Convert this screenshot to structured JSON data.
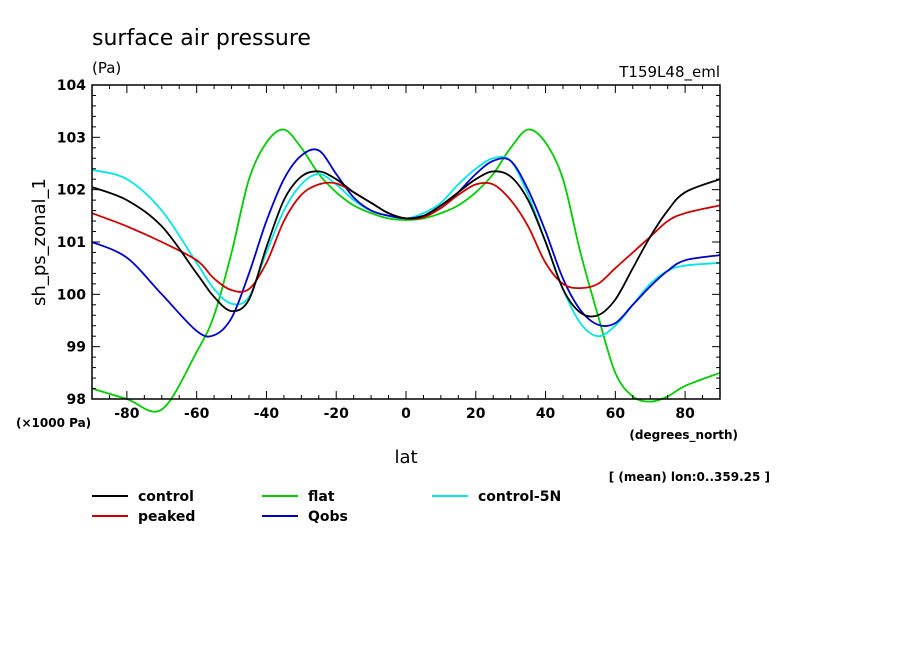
{
  "chart_data": {
    "type": "line",
    "title": "surface air pressure",
    "units": "(Pa)",
    "experiment": "T159L48_eml",
    "xlabel": "lat",
    "ylabel": "sh_ps_zonal_1",
    "x_units": "(degrees_north)",
    "y_scale_note": "(×1000 Pa)",
    "averaging_note": "[ (mean) lon:0..359.25 ]",
    "xlim": [
      -90,
      90
    ],
    "ylim": [
      98,
      104
    ],
    "xticks": [
      -80,
      -60,
      -40,
      -20,
      0,
      20,
      40,
      60,
      80
    ],
    "yticks": [
      98,
      99,
      100,
      101,
      102,
      103,
      104
    ],
    "x": [
      -90,
      -80,
      -70,
      -60,
      -55,
      -50,
      -45,
      -40,
      -35,
      -30,
      -25,
      -20,
      -15,
      -10,
      -5,
      0,
      5,
      10,
      15,
      20,
      25,
      30,
      35,
      40,
      45,
      50,
      55,
      60,
      65,
      70,
      75,
      80,
      90
    ],
    "series": [
      {
        "name": "control",
        "color": "#000000",
        "values": [
          102.05,
          101.8,
          101.3,
          100.4,
          99.95,
          99.68,
          99.9,
          100.9,
          101.8,
          102.25,
          102.35,
          102.2,
          101.95,
          101.75,
          101.55,
          101.45,
          101.5,
          101.7,
          101.95,
          102.2,
          102.35,
          102.25,
          101.8,
          101.0,
          100.1,
          99.65,
          99.6,
          99.9,
          100.5,
          101.1,
          101.6,
          101.95,
          102.2
        ]
      },
      {
        "name": "peaked",
        "color": "#cc0000",
        "values": [
          101.55,
          101.3,
          101.0,
          100.65,
          100.3,
          100.08,
          100.1,
          100.6,
          101.4,
          101.9,
          102.1,
          102.12,
          101.95,
          101.75,
          101.55,
          101.45,
          101.47,
          101.65,
          101.9,
          102.1,
          102.1,
          101.8,
          101.3,
          100.6,
          100.2,
          100.12,
          100.2,
          100.5,
          100.8,
          101.1,
          101.4,
          101.55,
          101.7
        ]
      },
      {
        "name": "flat",
        "color": "#00cc00",
        "values": [
          98.2,
          98.0,
          97.8,
          98.9,
          99.6,
          100.8,
          102.2,
          102.9,
          103.15,
          102.8,
          102.3,
          101.95,
          101.7,
          101.55,
          101.45,
          101.42,
          101.45,
          101.55,
          101.7,
          101.95,
          102.3,
          102.8,
          103.15,
          102.9,
          102.2,
          100.8,
          99.6,
          98.5,
          98.05,
          97.95,
          98.05,
          98.25,
          98.5
        ]
      },
      {
        "name": "control-5N",
        "color": "#00e5e5",
        "values": [
          102.38,
          102.2,
          101.6,
          100.6,
          100.1,
          99.82,
          99.95,
          100.8,
          101.6,
          102.1,
          102.3,
          102.1,
          101.8,
          101.6,
          101.5,
          101.45,
          101.55,
          101.75,
          102.1,
          102.4,
          102.6,
          102.55,
          101.9,
          101.0,
          100.1,
          99.45,
          99.2,
          99.4,
          99.8,
          100.2,
          100.45,
          100.55,
          100.6
        ]
      },
      {
        "name": "Qobs",
        "color": "#0000cc",
        "values": [
          101.0,
          100.7,
          100.0,
          99.3,
          99.22,
          99.55,
          100.4,
          101.4,
          102.2,
          102.65,
          102.75,
          102.3,
          101.85,
          101.6,
          101.5,
          101.45,
          101.5,
          101.65,
          101.95,
          102.3,
          102.55,
          102.55,
          102.0,
          101.2,
          100.3,
          99.7,
          99.42,
          99.45,
          99.8,
          100.15,
          100.45,
          100.65,
          100.75
        ]
      }
    ],
    "legend_position": "below"
  }
}
